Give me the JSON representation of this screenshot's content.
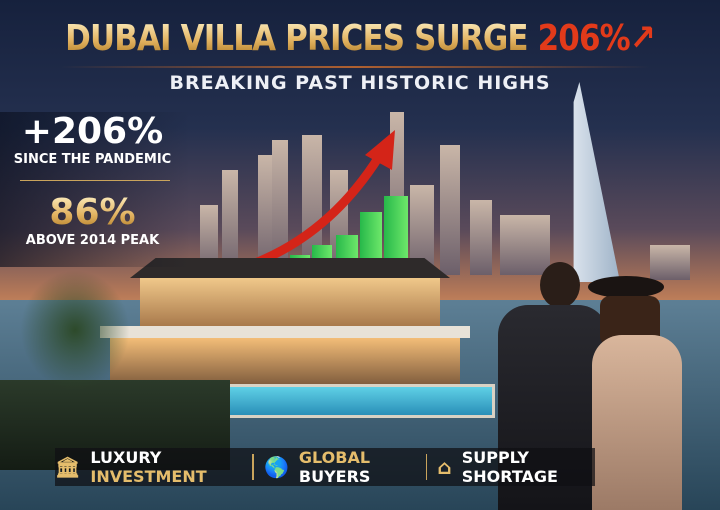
{
  "headline": {
    "main": "DUBAI VILLA PRICES SURGE",
    "highlight": "206%",
    "arrow_icon": "up-arrow-icon"
  },
  "subtitle": "BREAKING PAST HISTORIC HIGHS",
  "stats": [
    {
      "value": "+206%",
      "label": "SINCE THE PANDEMIC"
    },
    {
      "value": "86%",
      "label": "ABOVE 2014 PEAK"
    }
  ],
  "features": [
    {
      "icon": "building-icon",
      "word1": "LUXURY",
      "word2": "INVESTMENT"
    },
    {
      "icon": "globe-icon",
      "word1": "GLOBAL",
      "word2": "BUYERS"
    },
    {
      "icon": "house-icon",
      "word1": "SUPPLY SHORTAGE",
      "word2": ""
    }
  ],
  "colors": {
    "gold": "#e2b260",
    "accent_red": "#e23a1a",
    "bar_green": "#2fc04e"
  }
}
